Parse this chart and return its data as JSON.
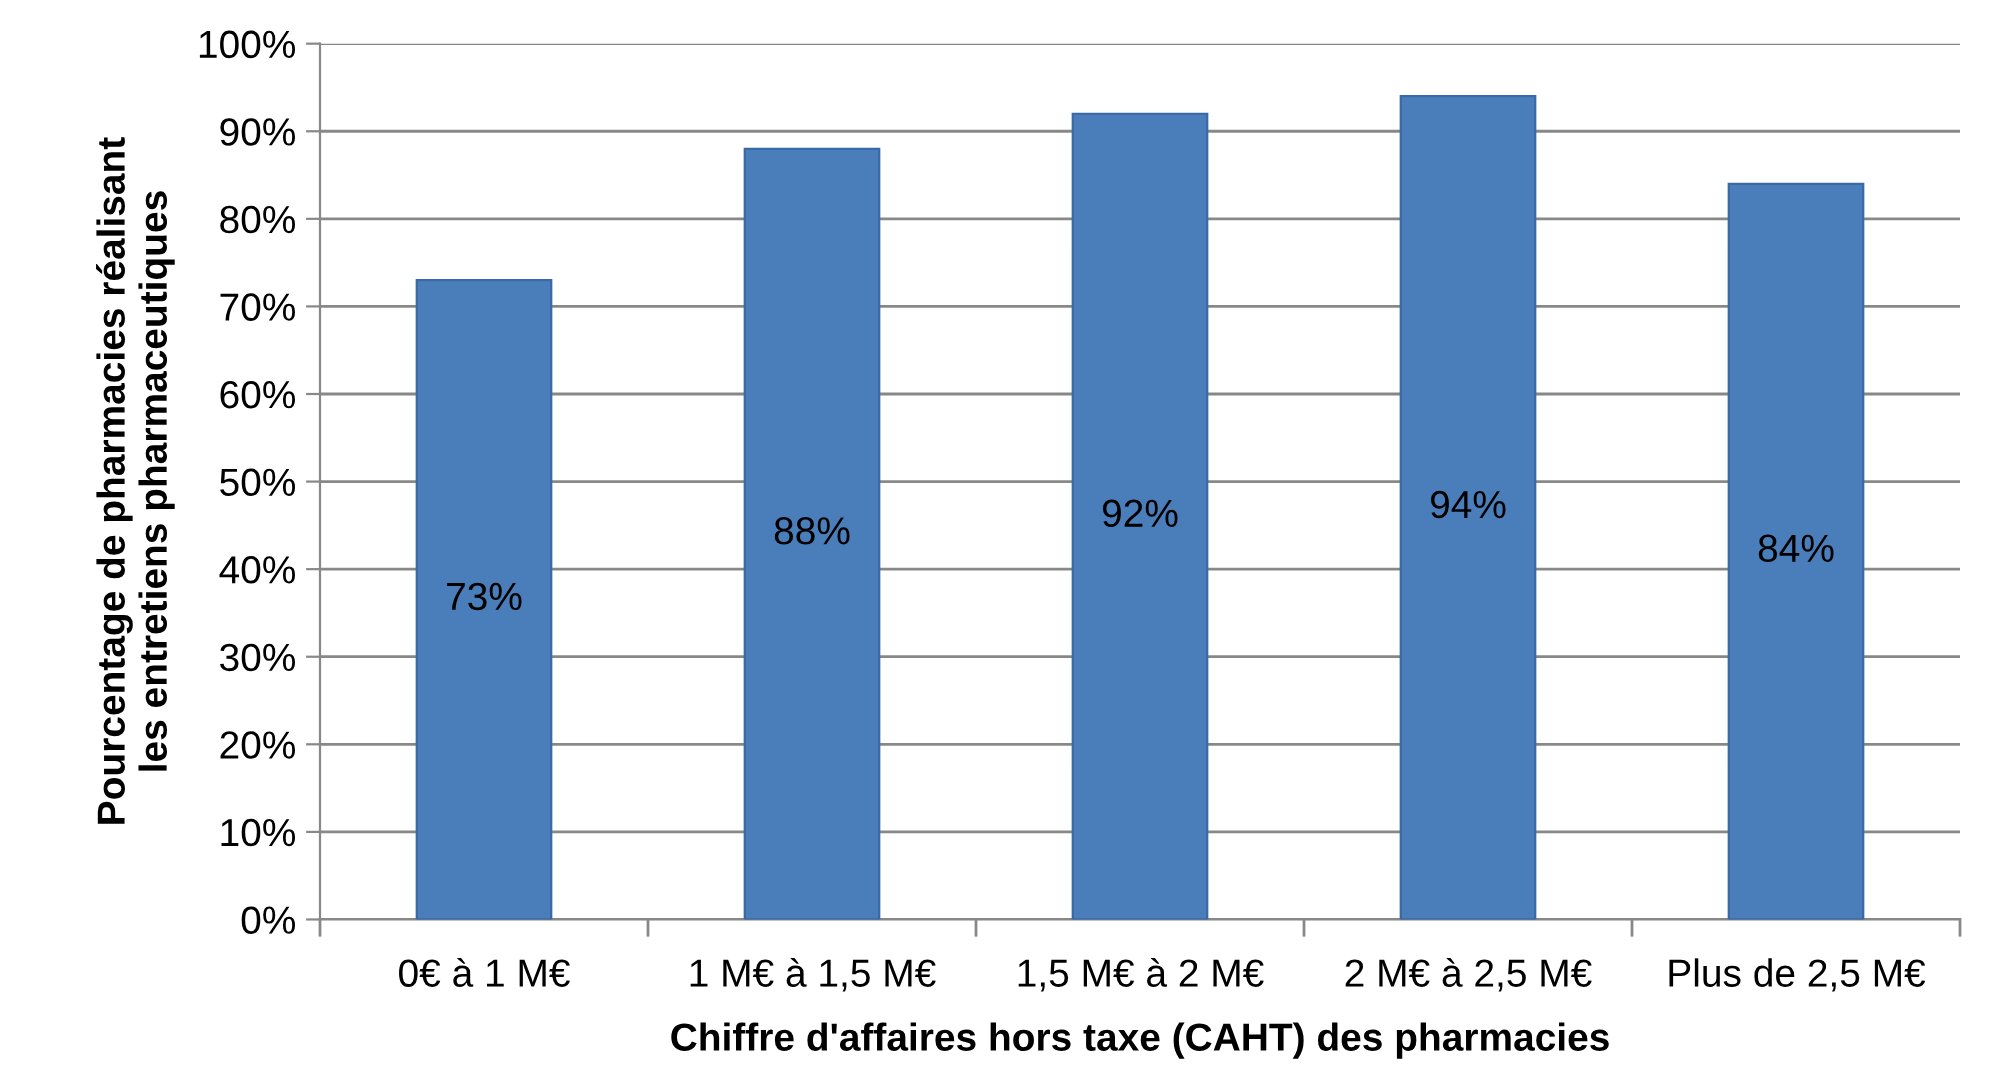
{
  "chart_data": {
    "type": "bar",
    "xlabel": "Chiffre d'affaires hors taxe (CAHT) des pharmacies",
    "ylabel": "Pourcentage de pharmacies réalisant\nles entretiens pharmaceutiques",
    "categories": [
      "0€ à 1 M€",
      "1 M€ à 1,5 M€",
      "1,5 M€ à 2 M€",
      "2 M€ à 2,5 M€",
      "Plus de 2,5 M€"
    ],
    "values": [
      73,
      88,
      92,
      94,
      84
    ],
    "value_labels": [
      "73%",
      "88%",
      "92%",
      "94%",
      "84%"
    ],
    "color": "#4a7ebb",
    "ylim": [
      0,
      100
    ],
    "yticks": [
      {
        "value": 0,
        "label": "0%"
      },
      {
        "value": 10,
        "label": "10%"
      },
      {
        "value": 20,
        "label": "20%"
      },
      {
        "value": 30,
        "label": "30%"
      },
      {
        "value": 40,
        "label": "40%"
      },
      {
        "value": 50,
        "label": "50%"
      },
      {
        "value": 60,
        "label": "60%"
      },
      {
        "value": 70,
        "label": "70%"
      },
      {
        "value": 80,
        "label": "80%"
      },
      {
        "value": 90,
        "label": "90%"
      },
      {
        "value": 100,
        "label": "100%"
      }
    ],
    "grid": "y",
    "legend": false
  }
}
